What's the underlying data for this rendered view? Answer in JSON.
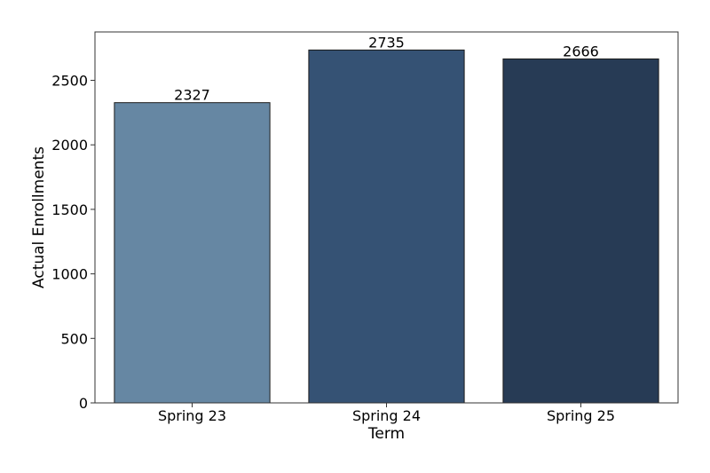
{
  "chart_data": {
    "type": "bar",
    "title": "",
    "xlabel": "Term",
    "ylabel": "Actual Enrollments",
    "categories": [
      "Spring 23",
      "Spring 24",
      "Spring 25"
    ],
    "values": [
      2327,
      2735,
      2666
    ],
    "data_labels": [
      "2327",
      "2735",
      "2666"
    ],
    "ylim": [
      0,
      2875
    ],
    "yticks": [
      0,
      500,
      1000,
      1500,
      2000,
      2500
    ],
    "ytick_labels": [
      "0",
      "500",
      "1000",
      "1500",
      "2000",
      "2500"
    ],
    "bar_colors": [
      "#6687a3",
      "#355274",
      "#273b55"
    ],
    "grid": false,
    "legend": "none"
  }
}
